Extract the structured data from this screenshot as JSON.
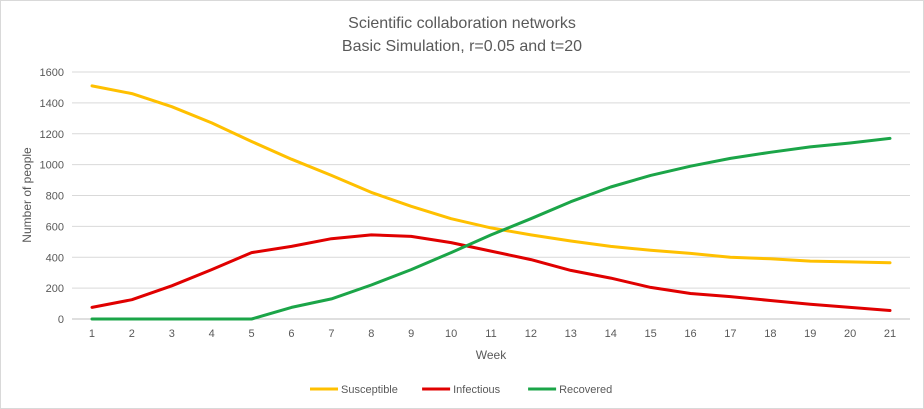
{
  "chart_data": {
    "type": "line",
    "title": "Scientific collaboration networks",
    "subtitle": "Basic Simulation, r=0.05 and t=20",
    "xlabel": "Week",
    "ylabel": "Number of people",
    "categories": [
      "1",
      "2",
      "3",
      "4",
      "5",
      "6",
      "7",
      "8",
      "9",
      "10",
      "11",
      "12",
      "13",
      "14",
      "15",
      "16",
      "17",
      "18",
      "19",
      "20",
      "21"
    ],
    "ylim": [
      0,
      1600
    ],
    "yticks": [
      "0",
      "200",
      "400",
      "600",
      "800",
      "1000",
      "1200",
      "1400",
      "1600"
    ],
    "grid": true,
    "legend_position": "bottom",
    "series": [
      {
        "name": "Susceptible",
        "color": "#FFC000",
        "values": [
          1510,
          1460,
          1375,
          1270,
          1150,
          1035,
          930,
          820,
          730,
          650,
          590,
          545,
          505,
          470,
          445,
          425,
          400,
          390,
          375,
          370,
          365
        ]
      },
      {
        "name": "Infectious",
        "color": "#E00000",
        "values": [
          75,
          125,
          215,
          320,
          430,
          470,
          520,
          545,
          535,
          495,
          440,
          385,
          315,
          265,
          205,
          165,
          145,
          120,
          95,
          75,
          55
        ]
      },
      {
        "name": "Recovered",
        "color": "#1BA548",
        "values": [
          0,
          0,
          0,
          0,
          0,
          75,
          130,
          220,
          320,
          430,
          545,
          650,
          760,
          855,
          930,
          990,
          1040,
          1080,
          1115,
          1140,
          1170
        ]
      }
    ]
  }
}
